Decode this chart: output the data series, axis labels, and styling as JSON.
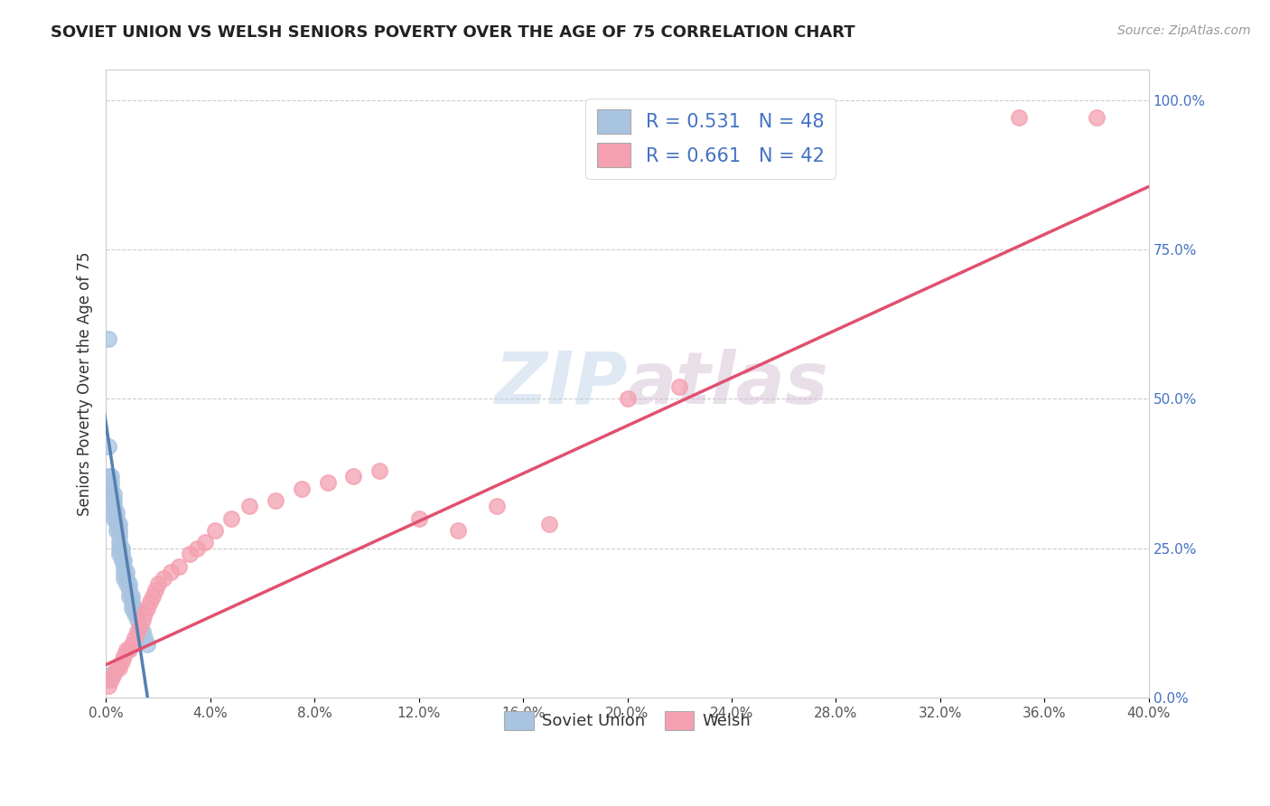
{
  "title": "SOVIET UNION VS WELSH SENIORS POVERTY OVER THE AGE OF 75 CORRELATION CHART",
  "source": "Source: ZipAtlas.com",
  "ylabel": "Seniors Poverty Over the Age of 75",
  "xlim": [
    0.0,
    0.4
  ],
  "ylim": [
    0.0,
    1.05
  ],
  "xticks": [
    0.0,
    0.04,
    0.08,
    0.12,
    0.16,
    0.2,
    0.24,
    0.28,
    0.32,
    0.36,
    0.4
  ],
  "yticks_right": [
    0.0,
    0.25,
    0.5,
    0.75,
    1.0
  ],
  "soviet_R": 0.531,
  "soviet_N": 48,
  "welsh_R": 0.661,
  "welsh_N": 42,
  "soviet_color": "#a8c4e0",
  "welsh_color": "#f4a0b0",
  "soviet_line_color": "#5580b0",
  "welsh_line_color": "#e05070",
  "background_color": "#ffffff",
  "watermark_zip": "ZIP",
  "watermark_atlas": "atlas",
  "soviet_x": [
    0.001,
    0.001,
    0.001,
    0.002,
    0.002,
    0.002,
    0.002,
    0.003,
    0.003,
    0.003,
    0.003,
    0.003,
    0.004,
    0.004,
    0.004,
    0.004,
    0.005,
    0.005,
    0.005,
    0.005,
    0.005,
    0.005,
    0.006,
    0.006,
    0.006,
    0.007,
    0.007,
    0.007,
    0.007,
    0.008,
    0.008,
    0.008,
    0.009,
    0.009,
    0.009,
    0.01,
    0.01,
    0.01,
    0.011,
    0.011,
    0.012,
    0.012,
    0.013,
    0.014,
    0.015,
    0.016,
    0.001,
    0.002
  ],
  "soviet_y": [
    0.6,
    0.42,
    0.37,
    0.37,
    0.36,
    0.35,
    0.34,
    0.34,
    0.33,
    0.32,
    0.31,
    0.3,
    0.31,
    0.3,
    0.29,
    0.28,
    0.29,
    0.28,
    0.27,
    0.26,
    0.25,
    0.24,
    0.25,
    0.24,
    0.23,
    0.23,
    0.22,
    0.21,
    0.2,
    0.21,
    0.2,
    0.19,
    0.19,
    0.18,
    0.17,
    0.17,
    0.16,
    0.15,
    0.15,
    0.14,
    0.14,
    0.13,
    0.12,
    0.11,
    0.1,
    0.09,
    0.03,
    0.04
  ],
  "welsh_x": [
    0.001,
    0.002,
    0.003,
    0.004,
    0.005,
    0.006,
    0.007,
    0.008,
    0.009,
    0.01,
    0.011,
    0.012,
    0.013,
    0.014,
    0.015,
    0.016,
    0.017,
    0.018,
    0.019,
    0.02,
    0.022,
    0.025,
    0.028,
    0.032,
    0.035,
    0.038,
    0.042,
    0.048,
    0.055,
    0.065,
    0.075,
    0.085,
    0.095,
    0.105,
    0.12,
    0.135,
    0.15,
    0.17,
    0.2,
    0.22,
    0.35,
    0.38
  ],
  "welsh_y": [
    0.02,
    0.03,
    0.04,
    0.05,
    0.05,
    0.06,
    0.07,
    0.08,
    0.08,
    0.09,
    0.1,
    0.11,
    0.12,
    0.13,
    0.14,
    0.15,
    0.16,
    0.17,
    0.18,
    0.19,
    0.2,
    0.21,
    0.22,
    0.24,
    0.25,
    0.26,
    0.28,
    0.3,
    0.32,
    0.33,
    0.35,
    0.36,
    0.37,
    0.38,
    0.3,
    0.28,
    0.32,
    0.29,
    0.5,
    0.52,
    0.97,
    0.97
  ],
  "soviet_trend_x0": 0.0,
  "soviet_trend_y0": 0.46,
  "soviet_trend_x1": 0.016,
  "soviet_trend_y1": 0.0,
  "welsh_trend_x0": 0.0,
  "welsh_trend_y0": 0.055,
  "welsh_trend_x1": 0.4,
  "welsh_trend_y1": 0.855
}
